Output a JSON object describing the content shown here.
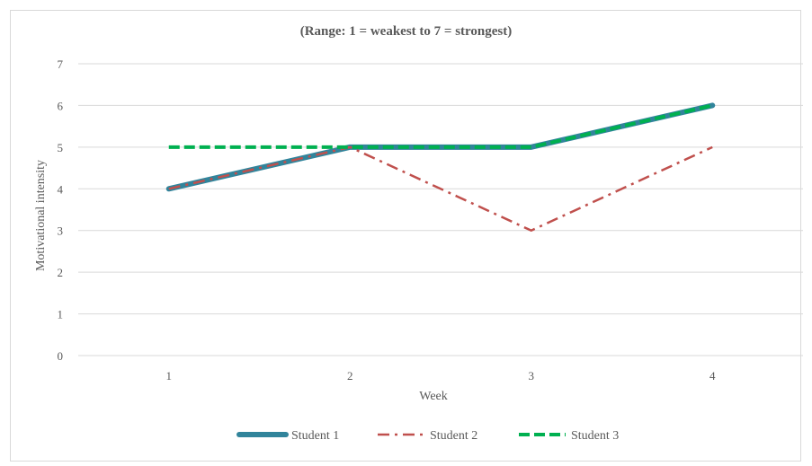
{
  "chart_data": {
    "type": "line",
    "title": "(Range:  1 = weakest to 7 = strongest)",
    "xlabel": "Week",
    "ylabel": "Motivational intensity",
    "categories": [
      "1",
      "2",
      "3",
      "4"
    ],
    "yticks": [
      "0",
      "1",
      "2",
      "3",
      "4",
      "5",
      "6",
      "7"
    ],
    "ylim": [
      0,
      7
    ],
    "grid": true,
    "legend_position": "bottom",
    "series": [
      {
        "name": "Student 1",
        "values": [
          4,
          5,
          5,
          6
        ],
        "color": "#31849b",
        "style": "solid"
      },
      {
        "name": "Student 2",
        "values": [
          4,
          5,
          3,
          5
        ],
        "color": "#c0504d",
        "style": "dash-dot"
      },
      {
        "name": "Student 3",
        "values": [
          5,
          5,
          5,
          6
        ],
        "color": "#00b050",
        "style": "dashed"
      }
    ]
  }
}
